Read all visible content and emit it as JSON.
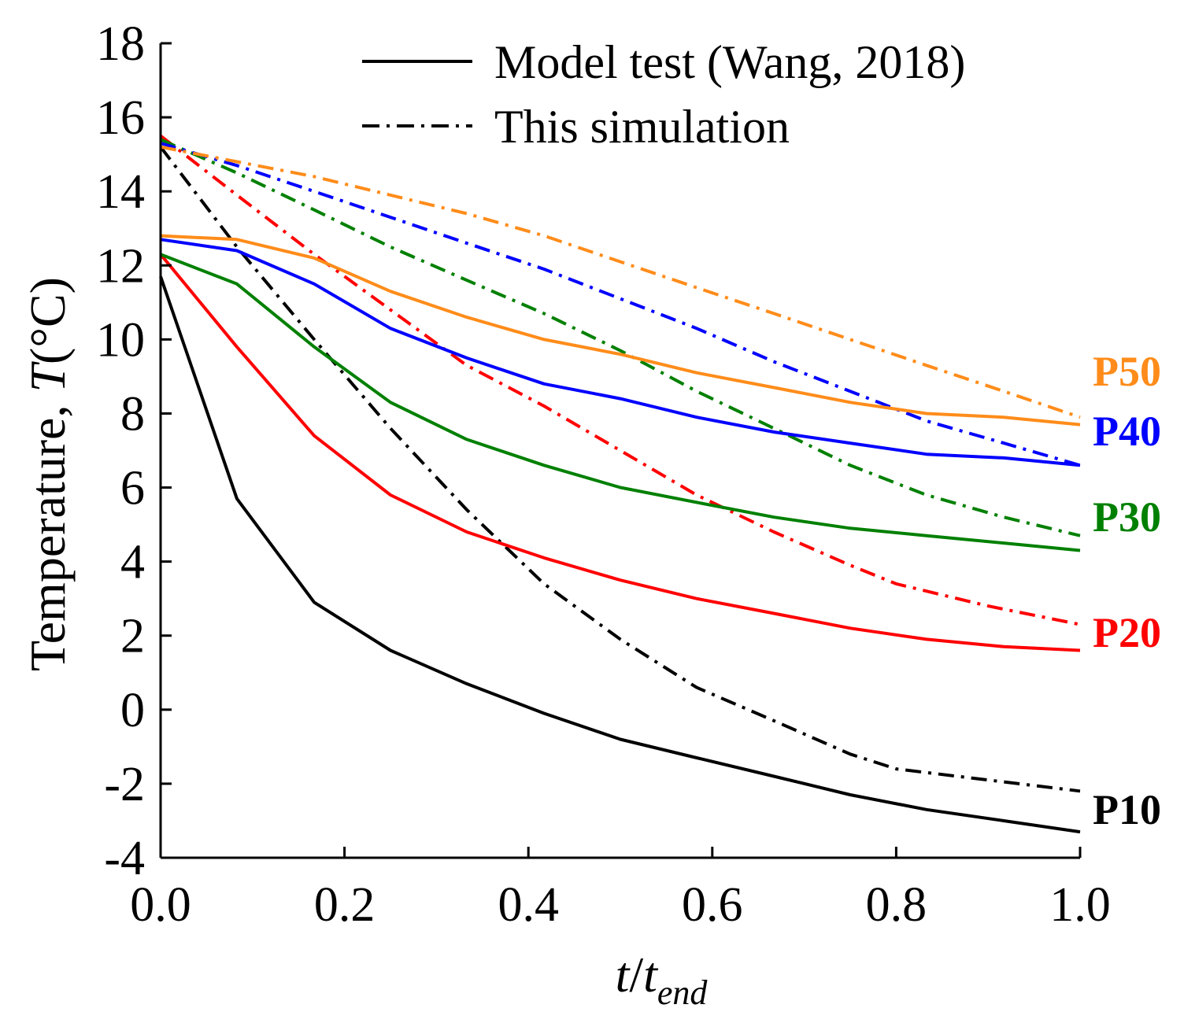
{
  "chart_data": {
    "type": "line",
    "title": "",
    "xlabel": {
      "var": "t",
      "slash": "/",
      "var2": "t",
      "sub": "end"
    },
    "ylabel": {
      "prefix": "Temperature, ",
      "var": "T",
      "unit": "(°C)"
    },
    "xlim": [
      0.0,
      1.0
    ],
    "ylim": [
      -4,
      18
    ],
    "xticks": [
      0.0,
      0.2,
      0.4,
      0.6,
      0.8,
      1.0
    ],
    "xtick_labels": [
      "0.0",
      "0.2",
      "0.4",
      "0.6",
      "0.8",
      "1.0"
    ],
    "yticks": [
      -4,
      -2,
      0,
      2,
      4,
      6,
      8,
      10,
      12,
      14,
      16,
      18
    ],
    "ytick_labels": [
      "-4",
      "-2",
      "0",
      "2",
      "4",
      "6",
      "8",
      "10",
      "12",
      "14",
      "16",
      "18"
    ],
    "grid": false,
    "legend": {
      "position": "top-center",
      "entries": [
        {
          "label": "Model test (Wang, 2018)",
          "style": "solid"
        },
        {
          "label": "This simulation",
          "style": "dashdot"
        }
      ]
    },
    "series": [
      {
        "name": "P10",
        "label_color": "#000000",
        "color": "#000000",
        "model_test": {
          "x": [
            0,
            0.083,
            0.167,
            0.25,
            0.333,
            0.417,
            0.5,
            0.583,
            0.667,
            0.75,
            0.833,
            0.917,
            1.0
          ],
          "y": [
            11.7,
            5.7,
            2.9,
            1.6,
            0.7,
            -0.1,
            -0.8,
            -1.3,
            -1.8,
            -2.3,
            -2.7,
            -3.0,
            -3.3
          ]
        },
        "simulation": {
          "x": [
            0,
            0.083,
            0.167,
            0.25,
            0.333,
            0.417,
            0.5,
            0.583,
            0.667,
            0.75,
            0.8,
            0.9,
            1.0
          ],
          "y": [
            15.2,
            12.5,
            10.0,
            7.6,
            5.4,
            3.4,
            1.9,
            0.6,
            -0.3,
            -1.2,
            -1.6,
            -1.9,
            -2.2
          ]
        }
      },
      {
        "name": "P20",
        "label_color": "#ff0000",
        "color": "#ff0000",
        "model_test": {
          "x": [
            0,
            0.083,
            0.167,
            0.25,
            0.333,
            0.417,
            0.5,
            0.583,
            0.667,
            0.75,
            0.833,
            0.917,
            1.0
          ],
          "y": [
            12.3,
            9.8,
            7.4,
            5.8,
            4.8,
            4.1,
            3.5,
            3.0,
            2.6,
            2.2,
            1.9,
            1.7,
            1.6
          ]
        },
        "simulation": {
          "x": [
            0,
            0.083,
            0.167,
            0.25,
            0.333,
            0.417,
            0.5,
            0.583,
            0.667,
            0.75,
            0.8,
            0.9,
            1.0
          ],
          "y": [
            15.5,
            13.9,
            12.3,
            10.8,
            9.3,
            8.2,
            7.0,
            5.8,
            4.8,
            3.9,
            3.4,
            2.8,
            2.3
          ]
        }
      },
      {
        "name": "P30",
        "label_color": "#008000",
        "color": "#008000",
        "model_test": {
          "x": [
            0,
            0.083,
            0.167,
            0.25,
            0.333,
            0.417,
            0.5,
            0.583,
            0.667,
            0.75,
            0.833,
            0.917,
            1.0
          ],
          "y": [
            12.3,
            11.5,
            9.8,
            8.3,
            7.3,
            6.6,
            6.0,
            5.6,
            5.2,
            4.9,
            4.7,
            4.5,
            4.3
          ]
        },
        "simulation": {
          "x": [
            0,
            0.083,
            0.167,
            0.25,
            0.333,
            0.417,
            0.5,
            0.583,
            0.667,
            0.75,
            0.833,
            0.917,
            1.0
          ],
          "y": [
            15.4,
            14.5,
            13.5,
            12.5,
            11.6,
            10.7,
            9.7,
            8.6,
            7.6,
            6.6,
            5.8,
            5.2,
            4.7
          ]
        }
      },
      {
        "name": "P40",
        "label_color": "#0000ff",
        "color": "#0000ff",
        "model_test": {
          "x": [
            0,
            0.083,
            0.167,
            0.25,
            0.333,
            0.417,
            0.5,
            0.583,
            0.667,
            0.75,
            0.833,
            0.917,
            1.0
          ],
          "y": [
            12.7,
            12.4,
            11.5,
            10.3,
            9.5,
            8.8,
            8.4,
            7.9,
            7.5,
            7.2,
            6.9,
            6.8,
            6.6
          ]
        },
        "simulation": {
          "x": [
            0,
            0.083,
            0.167,
            0.25,
            0.333,
            0.417,
            0.5,
            0.583,
            0.667,
            0.75,
            0.833,
            0.917,
            1.0
          ],
          "y": [
            15.3,
            14.7,
            14.0,
            13.3,
            12.6,
            11.9,
            11.1,
            10.3,
            9.4,
            8.6,
            7.8,
            7.2,
            6.6
          ]
        }
      },
      {
        "name": "P50",
        "label_color": "#ff8c1a",
        "color": "#ff8c1a",
        "model_test": {
          "x": [
            0,
            0.083,
            0.167,
            0.25,
            0.333,
            0.417,
            0.5,
            0.583,
            0.667,
            0.75,
            0.833,
            0.917,
            1.0
          ],
          "y": [
            12.8,
            12.7,
            12.2,
            11.3,
            10.6,
            10.0,
            9.6,
            9.1,
            8.7,
            8.3,
            8.0,
            7.9,
            7.7
          ]
        },
        "simulation": {
          "x": [
            0,
            0.083,
            0.167,
            0.25,
            0.333,
            0.417,
            0.5,
            0.583,
            0.667,
            0.75,
            0.833,
            0.917,
            1.0
          ],
          "y": [
            15.2,
            14.8,
            14.4,
            13.9,
            13.4,
            12.8,
            12.1,
            11.4,
            10.7,
            10.0,
            9.3,
            8.6,
            7.9
          ]
        }
      }
    ]
  }
}
